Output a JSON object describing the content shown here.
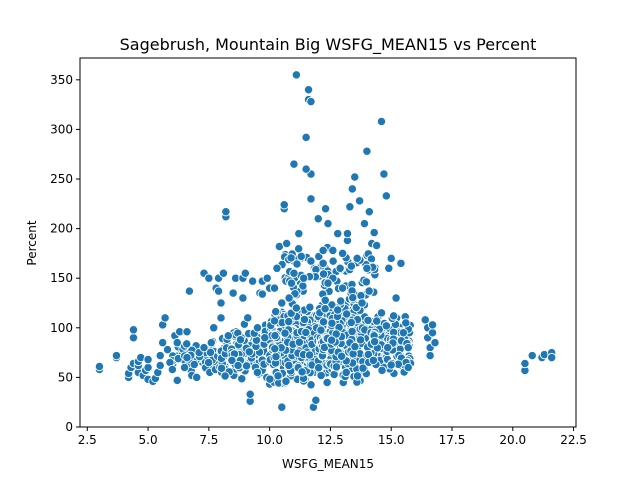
{
  "chart_data": {
    "type": "scatter",
    "title": "Sagebrush, Mountain Big WSFG_MEAN15 vs Percent",
    "xlabel": "WSFG_MEAN15",
    "ylabel": "Percent",
    "xlim": [
      2.2,
      22.6
    ],
    "ylim": [
      0,
      372
    ],
    "xticks": [
      2.5,
      5.0,
      7.5,
      10.0,
      12.5,
      15.0,
      17.5,
      20.0,
      22.5
    ],
    "xtick_labels": [
      "2.5",
      "5.0",
      "7.5",
      "10.0",
      "12.5",
      "15.0",
      "17.5",
      "20.0",
      "22.5"
    ],
    "yticks": [
      0,
      50,
      100,
      150,
      200,
      250,
      300,
      350
    ],
    "ytick_labels": [
      "0",
      "50",
      "100",
      "150",
      "200",
      "250",
      "300",
      "350"
    ],
    "grid": false,
    "marker_color": "#1f77b4",
    "marker_edge": "#ffffff",
    "points": [
      [
        3.0,
        58
      ],
      [
        3.0,
        61
      ],
      [
        3.7,
        70
      ],
      [
        3.7,
        72
      ],
      [
        4.2,
        50
      ],
      [
        4.2,
        54
      ],
      [
        4.3,
        60
      ],
      [
        4.4,
        64
      ],
      [
        4.4,
        90
      ],
      [
        4.4,
        98
      ],
      [
        4.6,
        55
      ],
      [
        4.6,
        62
      ],
      [
        4.6,
        66
      ],
      [
        4.7,
        70
      ],
      [
        4.8,
        52
      ],
      [
        4.9,
        57
      ],
      [
        5.0,
        48
      ],
      [
        5.0,
        60
      ],
      [
        5.0,
        68
      ],
      [
        5.2,
        46
      ],
      [
        5.3,
        49
      ],
      [
        5.4,
        55
      ],
      [
        5.5,
        62
      ],
      [
        5.5,
        72
      ],
      [
        5.6,
        85
      ],
      [
        5.6,
        103
      ],
      [
        5.7,
        110
      ],
      [
        5.8,
        78
      ],
      [
        5.9,
        65
      ],
      [
        6.0,
        58
      ],
      [
        6.1,
        92
      ],
      [
        6.2,
        47
      ],
      [
        6.2,
        85
      ],
      [
        6.3,
        96
      ],
      [
        6.5,
        60
      ],
      [
        6.6,
        70
      ],
      [
        6.6,
        96
      ],
      [
        6.7,
        137
      ],
      [
        6.8,
        52
      ],
      [
        6.9,
        63
      ],
      [
        7.0,
        50
      ],
      [
        7.1,
        75
      ],
      [
        7.3,
        80
      ],
      [
        7.3,
        155
      ],
      [
        7.5,
        150
      ],
      [
        7.6,
        85
      ],
      [
        7.7,
        100
      ],
      [
        7.8,
        140
      ],
      [
        7.9,
        137
      ],
      [
        7.9,
        150
      ],
      [
        8.0,
        110
      ],
      [
        8.0,
        125
      ],
      [
        8.1,
        155
      ],
      [
        8.2,
        212
      ],
      [
        8.2,
        217
      ],
      [
        8.3,
        92
      ],
      [
        8.5,
        135
      ],
      [
        8.6,
        150
      ],
      [
        8.7,
        62
      ],
      [
        8.8,
        88
      ],
      [
        8.9,
        150
      ],
      [
        9.0,
        155
      ],
      [
        9.1,
        110
      ],
      [
        9.2,
        26
      ],
      [
        9.2,
        33
      ],
      [
        9.3,
        147
      ],
      [
        9.5,
        100
      ],
      [
        9.6,
        135
      ],
      [
        9.7,
        147
      ],
      [
        9.8,
        90
      ],
      [
        9.9,
        150
      ],
      [
        10.0,
        140
      ],
      [
        10.2,
        107
      ],
      [
        10.3,
        160
      ],
      [
        10.4,
        182
      ],
      [
        10.5,
        20
      ],
      [
        10.6,
        220
      ],
      [
        10.6,
        224
      ],
      [
        10.7,
        185
      ],
      [
        10.8,
        130
      ],
      [
        11.0,
        265
      ],
      [
        11.0,
        155
      ],
      [
        11.1,
        355
      ],
      [
        11.2,
        195
      ],
      [
        11.3,
        172
      ],
      [
        11.5,
        292
      ],
      [
        11.6,
        340
      ],
      [
        11.6,
        330
      ],
      [
        11.7,
        328
      ],
      [
        11.7,
        255
      ],
      [
        11.7,
        230
      ],
      [
        11.8,
        20
      ],
      [
        11.9,
        27
      ],
      [
        12.0,
        210
      ],
      [
        12.2,
        178
      ],
      [
        12.3,
        220
      ],
      [
        12.4,
        205
      ],
      [
        12.6,
        150
      ],
      [
        12.8,
        195
      ],
      [
        13.0,
        175
      ],
      [
        13.2,
        188
      ],
      [
        13.3,
        222
      ],
      [
        13.4,
        240
      ],
      [
        13.5,
        252
      ],
      [
        13.7,
        228
      ],
      [
        13.9,
        205
      ],
      [
        14.0,
        278
      ],
      [
        14.1,
        217
      ],
      [
        14.2,
        185
      ],
      [
        14.4,
        183
      ],
      [
        14.6,
        308
      ],
      [
        14.7,
        255
      ],
      [
        14.8,
        233
      ],
      [
        14.9,
        160
      ],
      [
        15.0,
        170
      ],
      [
        15.2,
        130
      ],
      [
        15.4,
        165
      ],
      [
        15.6,
        105
      ],
      [
        15.7,
        80
      ],
      [
        15.7,
        60
      ],
      [
        16.4,
        108
      ],
      [
        16.5,
        100
      ],
      [
        16.5,
        90
      ],
      [
        16.6,
        80
      ],
      [
        16.6,
        72
      ],
      [
        16.7,
        95
      ],
      [
        16.7,
        103
      ],
      [
        16.8,
        85
      ],
      [
        20.5,
        57
      ],
      [
        20.5,
        64
      ],
      [
        20.8,
        72
      ],
      [
        21.2,
        70
      ],
      [
        21.3,
        73
      ],
      [
        21.6,
        75
      ],
      [
        21.6,
        70
      ],
      [
        11.5,
        260
      ],
      [
        13.2,
        195
      ],
      [
        12.6,
        178
      ],
      [
        10.9,
        145
      ],
      [
        14.3,
        196
      ],
      [
        13.6,
        170
      ],
      [
        12.2,
        165
      ],
      [
        12.9,
        160
      ],
      [
        14.0,
        160
      ],
      [
        11.4,
        150
      ],
      [
        12.4,
        145
      ],
      [
        13.0,
        140
      ],
      [
        10.2,
        140
      ],
      [
        9.7,
        134
      ],
      [
        8.9,
        130
      ],
      [
        10.5,
        125
      ],
      [
        11.1,
        120
      ],
      [
        12.8,
        118
      ],
      [
        13.8,
        125
      ],
      [
        14.6,
        115
      ],
      [
        15.1,
        112
      ],
      [
        14.8,
        102
      ],
      [
        15.5,
        95
      ]
    ],
    "clusters": [
      {
        "xmin": 6.0,
        "xmax": 8.0,
        "ymin": 52,
        "ymax": 90,
        "n": 80
      },
      {
        "xmin": 8.0,
        "xmax": 10.0,
        "ymin": 45,
        "ymax": 105,
        "n": 160
      },
      {
        "xmin": 10.0,
        "xmax": 12.0,
        "ymin": 40,
        "ymax": 125,
        "n": 320
      },
      {
        "xmin": 12.0,
        "xmax": 14.0,
        "ymin": 42,
        "ymax": 130,
        "n": 340
      },
      {
        "xmin": 14.0,
        "xmax": 15.8,
        "ymin": 50,
        "ymax": 115,
        "n": 160
      },
      {
        "xmin": 10.5,
        "xmax": 14.5,
        "ymin": 120,
        "ymax": 185,
        "n": 90
      }
    ]
  }
}
